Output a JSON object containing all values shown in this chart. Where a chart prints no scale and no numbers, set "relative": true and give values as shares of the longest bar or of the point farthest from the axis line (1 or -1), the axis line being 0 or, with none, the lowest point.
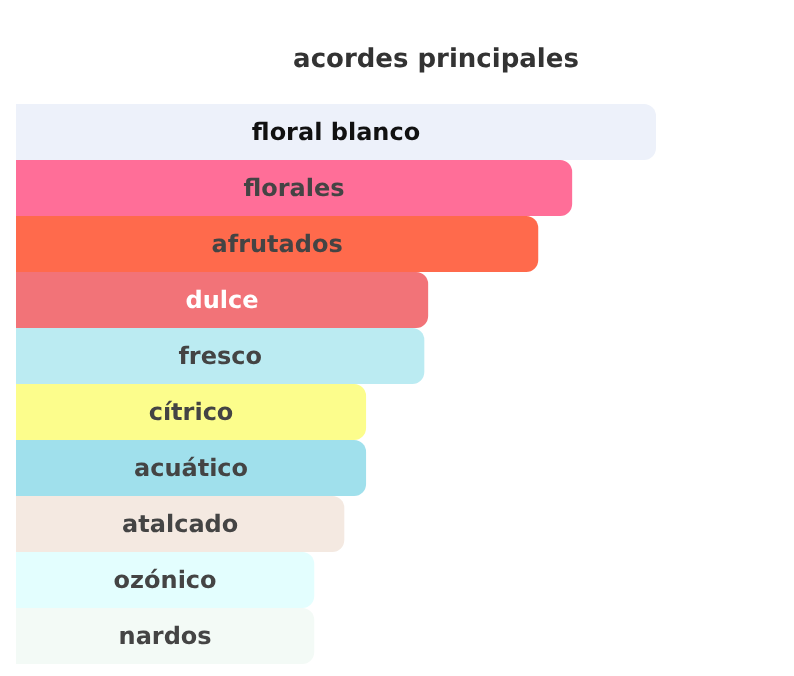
{
  "chart_data": {
    "type": "bar",
    "orientation": "horizontal",
    "relative": true,
    "title": "acordes principales",
    "categories": [
      "floral blanco",
      "florales",
      "afrutados",
      "dulce",
      "fresco",
      "cítrico",
      "acuático",
      "atalcado",
      "ozónico",
      "nardos"
    ],
    "values": [
      1,
      0.869,
      0.816,
      0.644,
      0.638,
      0.547,
      0.547,
      0.513,
      0.466,
      0.466
    ],
    "colors": [
      "#edf1fa",
      "#ff6e98",
      "#ff6a4c",
      "#f27378",
      "#bbebf2",
      "#fcfd8c",
      "#a0e0ec",
      "#f4e9e1",
      "#e3fefe",
      "#f3faf6"
    ]
  }
}
